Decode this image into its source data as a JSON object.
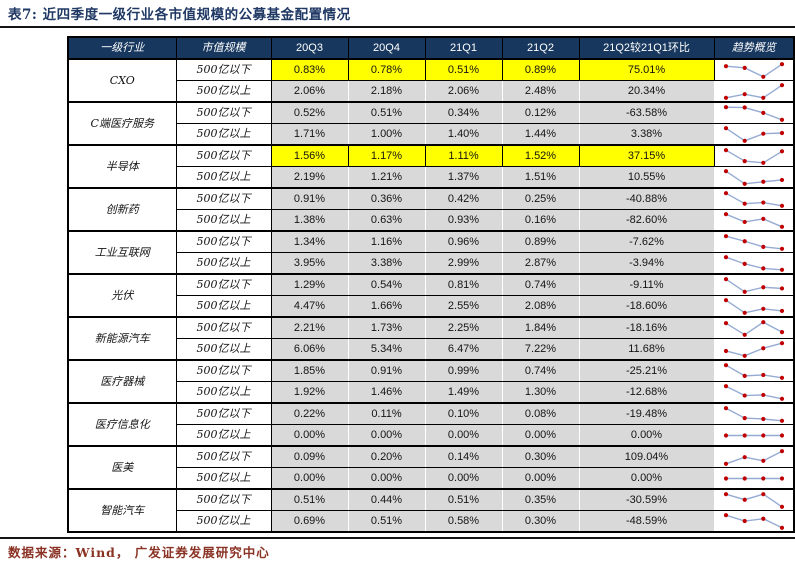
{
  "title": "表7:  近四季度一级行业各市值规模的公募基金配置情况",
  "footer": {
    "source_text": "数据来源：Wind，  广发证券发展研究中心"
  },
  "colors": {
    "title": "#1F3864",
    "rule": "#141414",
    "header_bg": "#17375E",
    "row_grey": "#D9D9D9",
    "highlight": "#FFFF00",
    "spark_line": "#96ABD3",
    "spark_dot": "#C00000",
    "footer": "#8A3224"
  },
  "table": {
    "headers": [
      "一级行业",
      "市值规模",
      "20Q3",
      "20Q4",
      "21Q1",
      "21Q2",
      "21Q2较21Q1环比",
      "趋势概览"
    ],
    "industries": [
      {
        "name": "CXO",
        "rows": [
          {
            "size": "500亿以下",
            "values": [
              "0.83%",
              "0.78%",
              "0.51%",
              "0.89%"
            ],
            "qoq": "75.01%",
            "highlight": true
          },
          {
            "size": "500亿以上",
            "values": [
              "2.06%",
              "2.18%",
              "2.06%",
              "2.48%"
            ],
            "qoq": "20.34%",
            "highlight": false
          }
        ]
      },
      {
        "name": "C端医疗服务",
        "rows": [
          {
            "size": "500亿以下",
            "values": [
              "0.52%",
              "0.51%",
              "0.34%",
              "0.12%"
            ],
            "qoq": "-63.58%",
            "highlight": false
          },
          {
            "size": "500亿以上",
            "values": [
              "1.71%",
              "1.00%",
              "1.40%",
              "1.44%"
            ],
            "qoq": "3.38%",
            "highlight": false
          }
        ]
      },
      {
        "name": "半导体",
        "rows": [
          {
            "size": "500亿以下",
            "values": [
              "1.56%",
              "1.17%",
              "1.11%",
              "1.52%"
            ],
            "qoq": "37.15%",
            "highlight": true
          },
          {
            "size": "500亿以上",
            "values": [
              "2.19%",
              "1.21%",
              "1.37%",
              "1.51%"
            ],
            "qoq": "10.55%",
            "highlight": false
          }
        ]
      },
      {
        "name": "创新药",
        "rows": [
          {
            "size": "500亿以下",
            "values": [
              "0.91%",
              "0.36%",
              "0.42%",
              "0.25%"
            ],
            "qoq": "-40.88%",
            "highlight": false
          },
          {
            "size": "500亿以上",
            "values": [
              "1.38%",
              "0.63%",
              "0.93%",
              "0.16%"
            ],
            "qoq": "-82.60%",
            "highlight": false
          }
        ]
      },
      {
        "name": "工业互联网",
        "rows": [
          {
            "size": "500亿以下",
            "values": [
              "1.34%",
              "1.16%",
              "0.96%",
              "0.89%"
            ],
            "qoq": "-7.62%",
            "highlight": false
          },
          {
            "size": "500亿以上",
            "values": [
              "3.95%",
              "3.38%",
              "2.99%",
              "2.87%"
            ],
            "qoq": "-3.94%",
            "highlight": false
          }
        ]
      },
      {
        "name": "光伏",
        "rows": [
          {
            "size": "500亿以下",
            "values": [
              "1.29%",
              "0.54%",
              "0.81%",
              "0.74%"
            ],
            "qoq": "-9.11%",
            "highlight": false
          },
          {
            "size": "500亿以上",
            "values": [
              "4.47%",
              "1.66%",
              "2.55%",
              "2.08%"
            ],
            "qoq": "-18.60%",
            "highlight": false
          }
        ]
      },
      {
        "name": "新能源汽车",
        "rows": [
          {
            "size": "500亿以下",
            "values": [
              "2.21%",
              "1.73%",
              "2.25%",
              "1.84%"
            ],
            "qoq": "-18.16%",
            "highlight": false
          },
          {
            "size": "500亿以上",
            "values": [
              "6.06%",
              "5.34%",
              "6.47%",
              "7.22%"
            ],
            "qoq": "11.68%",
            "highlight": false
          }
        ]
      },
      {
        "name": "医疗器械",
        "rows": [
          {
            "size": "500亿以下",
            "values": [
              "1.85%",
              "0.91%",
              "0.99%",
              "0.74%"
            ],
            "qoq": "-25.21%",
            "highlight": false
          },
          {
            "size": "500亿以上",
            "values": [
              "1.92%",
              "1.46%",
              "1.49%",
              "1.30%"
            ],
            "qoq": "-12.68%",
            "highlight": false
          }
        ]
      },
      {
        "name": "医疗信息化",
        "rows": [
          {
            "size": "500亿以下",
            "values": [
              "0.22%",
              "0.11%",
              "0.10%",
              "0.08%"
            ],
            "qoq": "-19.48%",
            "highlight": false
          },
          {
            "size": "500亿以上",
            "values": [
              "0.00%",
              "0.00%",
              "0.00%",
              "0.00%"
            ],
            "qoq": "0.00%",
            "highlight": false
          }
        ]
      },
      {
        "name": "医美",
        "rows": [
          {
            "size": "500亿以下",
            "values": [
              "0.09%",
              "0.20%",
              "0.14%",
              "0.30%"
            ],
            "qoq": "109.04%",
            "highlight": false
          },
          {
            "size": "500亿以上",
            "values": [
              "0.00%",
              "0.00%",
              "0.00%",
              "0.00%"
            ],
            "qoq": "0.00%",
            "highlight": false
          }
        ]
      },
      {
        "name": "智能汽车",
        "rows": [
          {
            "size": "500亿以下",
            "values": [
              "0.51%",
              "0.44%",
              "0.51%",
              "0.35%"
            ],
            "qoq": "-30.59%",
            "highlight": false
          },
          {
            "size": "500亿以上",
            "values": [
              "0.69%",
              "0.51%",
              "0.58%",
              "0.30%"
            ],
            "qoq": "-48.59%",
            "highlight": false
          }
        ]
      }
    ]
  }
}
